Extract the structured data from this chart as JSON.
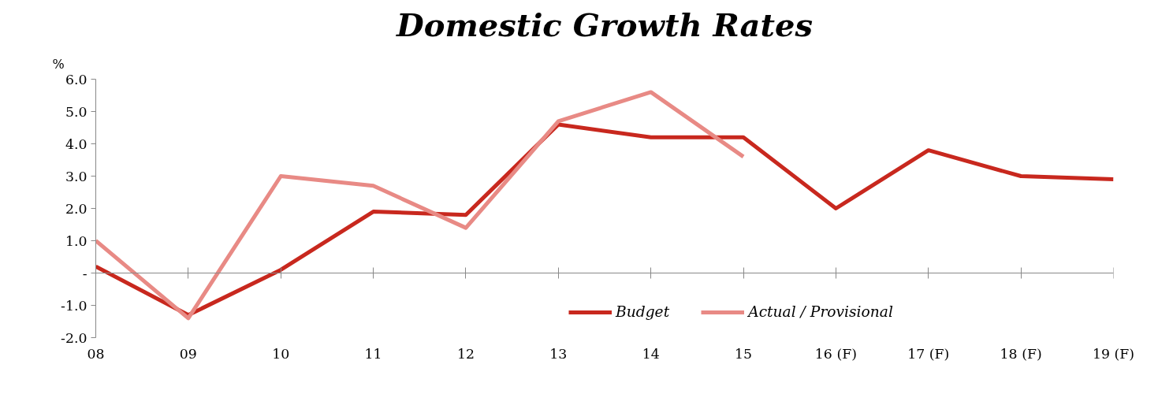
{
  "chart_data": {
    "type": "line",
    "title": "Domestic Growth Rates",
    "ylabel": "%",
    "categories": [
      "08",
      "09",
      "10",
      "11",
      "12",
      "13",
      "14",
      "15",
      "16 (F)",
      "17 (F)",
      "18 (F)",
      "19 (F)"
    ],
    "series": [
      {
        "name": "Budget",
        "color": "#c8281e",
        "values": [
          0.2,
          -1.3,
          0.1,
          1.9,
          1.8,
          4.6,
          4.2,
          4.2,
          2.0,
          3.8,
          3.0,
          2.9
        ]
      },
      {
        "name": "Actual / Provisional",
        "color": "#e88a85",
        "values": [
          1.0,
          -1.4,
          3.0,
          2.7,
          1.4,
          4.7,
          5.6,
          3.6,
          null,
          null,
          null,
          null
        ]
      }
    ],
    "ylim": [
      -2,
      6
    ],
    "yticks": [
      {
        "value": -2,
        "label": "-2.0"
      },
      {
        "value": -1,
        "label": "-1.0"
      },
      {
        "value": 0,
        "label": "-"
      },
      {
        "value": 1,
        "label": "1.0"
      },
      {
        "value": 2,
        "label": "2.0"
      },
      {
        "value": 3,
        "label": "3.0"
      },
      {
        "value": 4,
        "label": "4.0"
      },
      {
        "value": 5,
        "label": "5.0"
      },
      {
        "value": 6,
        "label": "6.0"
      }
    ],
    "legend": "bottom",
    "line_style": "solid",
    "marker": "none"
  }
}
